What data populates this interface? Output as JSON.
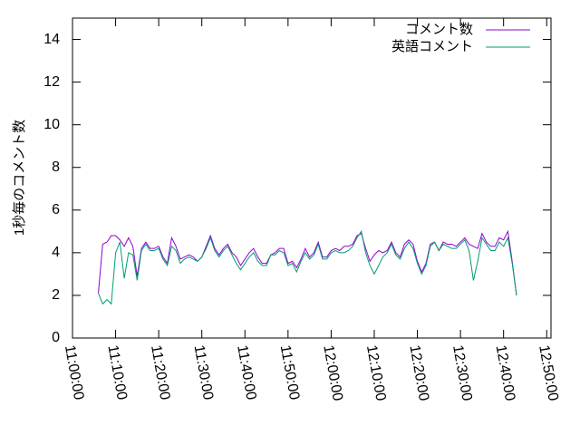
{
  "chart_data": {
    "type": "line",
    "ylabel": "1秒毎のコメント数",
    "x": [
      "11:06:00",
      "11:07:00",
      "11:08:00",
      "11:09:00",
      "11:10:00",
      "11:11:00",
      "11:12:00",
      "11:13:00",
      "11:14:00",
      "11:15:00",
      "11:16:00",
      "11:17:00",
      "11:18:00",
      "11:19:00",
      "11:20:00",
      "11:21:00",
      "11:22:00",
      "11:23:00",
      "11:24:00",
      "11:25:00",
      "11:26:00",
      "11:27:00",
      "11:28:00",
      "11:29:00",
      "11:30:00",
      "11:31:00",
      "11:32:00",
      "11:33:00",
      "11:34:00",
      "11:35:00",
      "11:36:00",
      "11:37:00",
      "11:38:00",
      "11:39:00",
      "11:40:00",
      "11:41:00",
      "11:42:00",
      "11:43:00",
      "11:44:00",
      "11:45:00",
      "11:46:00",
      "11:47:00",
      "11:48:00",
      "11:49:00",
      "11:50:00",
      "11:51:00",
      "11:52:00",
      "11:53:00",
      "11:54:00",
      "11:55:00",
      "11:56:00",
      "11:57:00",
      "11:58:00",
      "11:59:00",
      "12:00:00",
      "12:01:00",
      "12:02:00",
      "12:03:00",
      "12:04:00",
      "12:05:00",
      "12:06:00",
      "12:07:00",
      "12:08:00",
      "12:09:00",
      "12:10:00",
      "12:11:00",
      "12:12:00",
      "12:13:00",
      "12:14:00",
      "12:15:00",
      "12:16:00",
      "12:17:00",
      "12:18:00",
      "12:19:00",
      "12:20:00",
      "12:21:00",
      "12:22:00",
      "12:23:00",
      "12:24:00",
      "12:25:00",
      "12:26:00",
      "12:27:00",
      "12:28:00",
      "12:29:00",
      "12:30:00",
      "12:31:00",
      "12:32:00",
      "12:33:00",
      "12:34:00",
      "12:35:00",
      "12:36:00",
      "12:37:00",
      "12:38:00",
      "12:39:00",
      "12:40:00",
      "12:41:00",
      "12:42:00",
      "12:43:00"
    ],
    "series": [
      {
        "name": "コメント数",
        "color": "#9400d3",
        "values": [
          2.1,
          4.4,
          4.5,
          4.8,
          4.8,
          4.6,
          4.3,
          4.7,
          4.3,
          2.9,
          4.2,
          4.5,
          4.2,
          4.2,
          4.3,
          3.8,
          3.5,
          4.7,
          4.3,
          3.7,
          3.8,
          3.9,
          3.8,
          3.6,
          3.8,
          4.3,
          4.8,
          4.2,
          3.9,
          4.2,
          4.4,
          4.0,
          3.8,
          3.4,
          3.7,
          4.0,
          4.2,
          3.8,
          3.5,
          3.5,
          3.9,
          4.0,
          4.2,
          4.2,
          3.5,
          3.6,
          3.3,
          3.7,
          4.2,
          3.8,
          4.0,
          4.5,
          3.8,
          3.8,
          4.1,
          4.2,
          4.1,
          4.3,
          4.3,
          4.4,
          4.8,
          4.9,
          4.2,
          3.6,
          3.9,
          4.1,
          4.0,
          4.1,
          4.5,
          4.0,
          3.8,
          4.4,
          4.6,
          4.4,
          3.6,
          3.1,
          3.5,
          4.4,
          4.5,
          4.1,
          4.5,
          4.4,
          4.4,
          4.3,
          4.5,
          4.7,
          4.4,
          4.3,
          4.2,
          4.9,
          4.5,
          4.3,
          4.3,
          4.7,
          4.6,
          5.0,
          3.6,
          2.0
        ]
      },
      {
        "name": "英語コメント",
        "color": "#009e73",
        "values": [
          2.1,
          1.6,
          1.8,
          1.6,
          4.0,
          4.5,
          2.8,
          4.0,
          3.9,
          2.7,
          4.1,
          4.4,
          4.1,
          4.1,
          4.2,
          3.7,
          3.4,
          4.3,
          4.1,
          3.5,
          3.7,
          3.8,
          3.7,
          3.6,
          3.8,
          4.2,
          4.7,
          4.1,
          3.8,
          4.1,
          4.3,
          3.9,
          3.5,
          3.2,
          3.5,
          3.8,
          4.0,
          3.6,
          3.4,
          3.4,
          3.9,
          3.9,
          4.1,
          4.0,
          3.4,
          3.5,
          3.1,
          3.6,
          4.0,
          3.7,
          3.9,
          4.4,
          3.7,
          3.7,
          4.0,
          4.1,
          4.0,
          4.0,
          4.1,
          4.3,
          4.7,
          5.0,
          4.0,
          3.4,
          3.0,
          3.4,
          3.8,
          4.0,
          4.4,
          3.9,
          3.7,
          4.2,
          4.5,
          4.2,
          3.5,
          3.0,
          3.4,
          4.3,
          4.5,
          4.1,
          4.4,
          4.3,
          4.2,
          4.2,
          4.4,
          4.6,
          4.1,
          2.7,
          3.6,
          4.7,
          4.4,
          4.1,
          4.1,
          4.5,
          4.3,
          4.7,
          3.5,
          2.0
        ]
      }
    ],
    "xlim": [
      "11:00:00",
      "12:51:00"
    ],
    "xticks": [
      "11:00:00",
      "11:10:00",
      "11:20:00",
      "11:30:00",
      "11:40:00",
      "11:50:00",
      "12:00:00",
      "12:10:00",
      "12:20:00",
      "12:30:00",
      "12:40:00",
      "12:50:00"
    ],
    "ylim": [
      0,
      15
    ],
    "yticks": [
      0,
      2,
      4,
      6,
      8,
      10,
      12,
      14
    ],
    "legend": "upper right"
  }
}
